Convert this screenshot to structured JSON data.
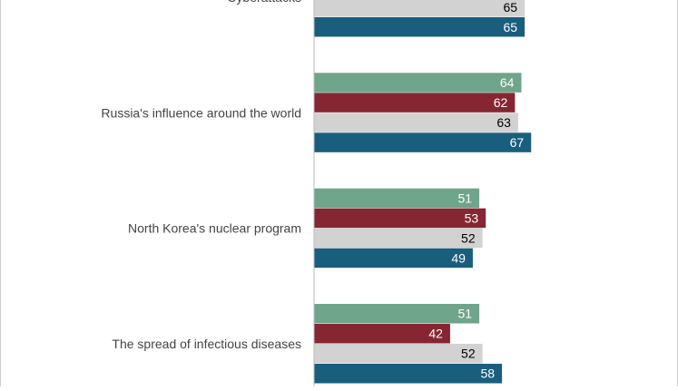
{
  "chart_data": {
    "type": "bar",
    "orientation": "horizontal",
    "categories": [
      "Cyberattacks",
      "Russia's influence around the world",
      "North Korea's nuclear program",
      "The spread of infectious diseases"
    ],
    "series": [
      {
        "color": "#6fa58a",
        "values": [
          null,
          64,
          51,
          51
        ]
      },
      {
        "color": "#862633",
        "values": [
          null,
          62,
          53,
          42
        ]
      },
      {
        "color": "#d2d2d2",
        "values": [
          65,
          63,
          52,
          52
        ]
      },
      {
        "color": "#1a5e7e",
        "values": [
          65,
          67,
          49,
          58
        ]
      }
    ],
    "label_colors": [
      "#ffffff",
      "#ffffff",
      "#000000",
      "#ffffff"
    ],
    "axis_baseline": "left",
    "grid": false,
    "legend": "none"
  }
}
